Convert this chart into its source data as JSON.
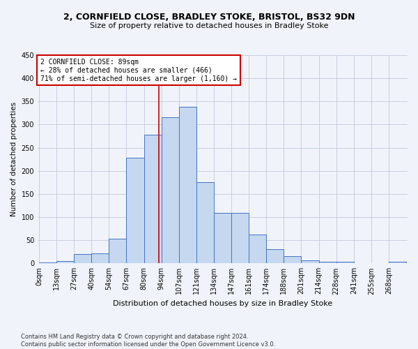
{
  "title1": "2, CORNFIELD CLOSE, BRADLEY STOKE, BRISTOL, BS32 9DN",
  "title2": "Size of property relative to detached houses in Bradley Stoke",
  "xlabel": "Distribution of detached houses by size in Bradley Stoke",
  "ylabel": "Number of detached properties",
  "footnote": "Contains HM Land Registry data © Crown copyright and database right 2024.\nContains public sector information licensed under the Open Government Licence v3.0.",
  "categories": [
    "0sqm",
    "13sqm",
    "27sqm",
    "40sqm",
    "54sqm",
    "67sqm",
    "80sqm",
    "94sqm",
    "107sqm",
    "121sqm",
    "134sqm",
    "147sqm",
    "161sqm",
    "174sqm",
    "188sqm",
    "201sqm",
    "214sqm",
    "228sqm",
    "241sqm",
    "255sqm",
    "268sqm"
  ],
  "values": [
    2,
    5,
    20,
    22,
    53,
    228,
    278,
    315,
    338,
    175,
    109,
    109,
    62,
    30,
    16,
    7,
    3,
    3,
    1,
    0,
    3
  ],
  "bar_color": "#c5d8f0",
  "bar_edge_color": "#4472c4",
  "vline_color": "#cc0000",
  "annotation_text": "2 CORNFIELD CLOSE: 89sqm\n← 28% of detached houses are smaller (466)\n71% of semi-detached houses are larger (1,160) →",
  "annotation_box_color": "#ffffff",
  "annotation_box_edgecolor": "#cc0000",
  "background_color": "#f0f4fa",
  "grid_color": "#c0c8d8",
  "ylim": [
    0,
    450
  ],
  "yticks": [
    0,
    50,
    100,
    150,
    200,
    250,
    300,
    350,
    400,
    450
  ],
  "bin_width": 13,
  "title1_fontsize": 9,
  "title2_fontsize": 8,
  "xlabel_fontsize": 8,
  "ylabel_fontsize": 7.5,
  "tick_fontsize": 7,
  "annot_fontsize": 7,
  "footnote_fontsize": 6
}
